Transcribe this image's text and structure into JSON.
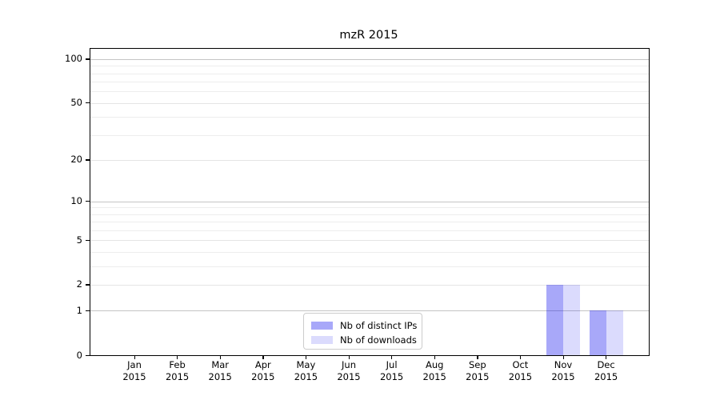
{
  "chart_data": {
    "type": "bar",
    "title": "mzR 2015",
    "categories": [
      "Jan",
      "Feb",
      "Mar",
      "Apr",
      "May",
      "Jun",
      "Jul",
      "Aug",
      "Sep",
      "Oct",
      "Nov",
      "Dec"
    ],
    "x_tick_year": "2015",
    "series": [
      {
        "name": "Nb of distinct IPs",
        "fill": "rgba(0,0,238,0.34)",
        "hex_over_white": "#aaaaf9",
        "values": [
          0,
          0,
          0,
          0,
          0,
          0,
          0,
          0,
          0,
          0,
          2,
          1
        ]
      },
      {
        "name": "Nb of downloads",
        "fill": "rgba(0,0,238,0.14)",
        "hex_over_white": "#dbdbfc",
        "values": [
          0,
          0,
          0,
          0,
          0,
          0,
          0,
          0,
          0,
          0,
          2,
          1
        ]
      }
    ],
    "y_axis": {
      "scale": "log1p",
      "ticks": [
        0,
        1,
        2,
        5,
        10,
        20,
        50,
        100
      ],
      "emphasized_gridlines": [
        1,
        10,
        100
      ],
      "minor_gridlines": [
        3,
        4,
        6,
        7,
        8,
        9,
        30,
        40,
        60,
        70,
        80,
        90
      ],
      "max": 117.5,
      "ylim": [
        0,
        117.5
      ]
    },
    "xlabel": "",
    "ylabel": "",
    "grid": true,
    "legend_position": "lower-center",
    "colors": {
      "grid_major": "#c4c4c4",
      "grid_mid": "#e4e4e4",
      "grid_minor": "#ededed",
      "axis": "#000000",
      "legend_border": "#cccccc",
      "background": "#ffffff"
    }
  }
}
